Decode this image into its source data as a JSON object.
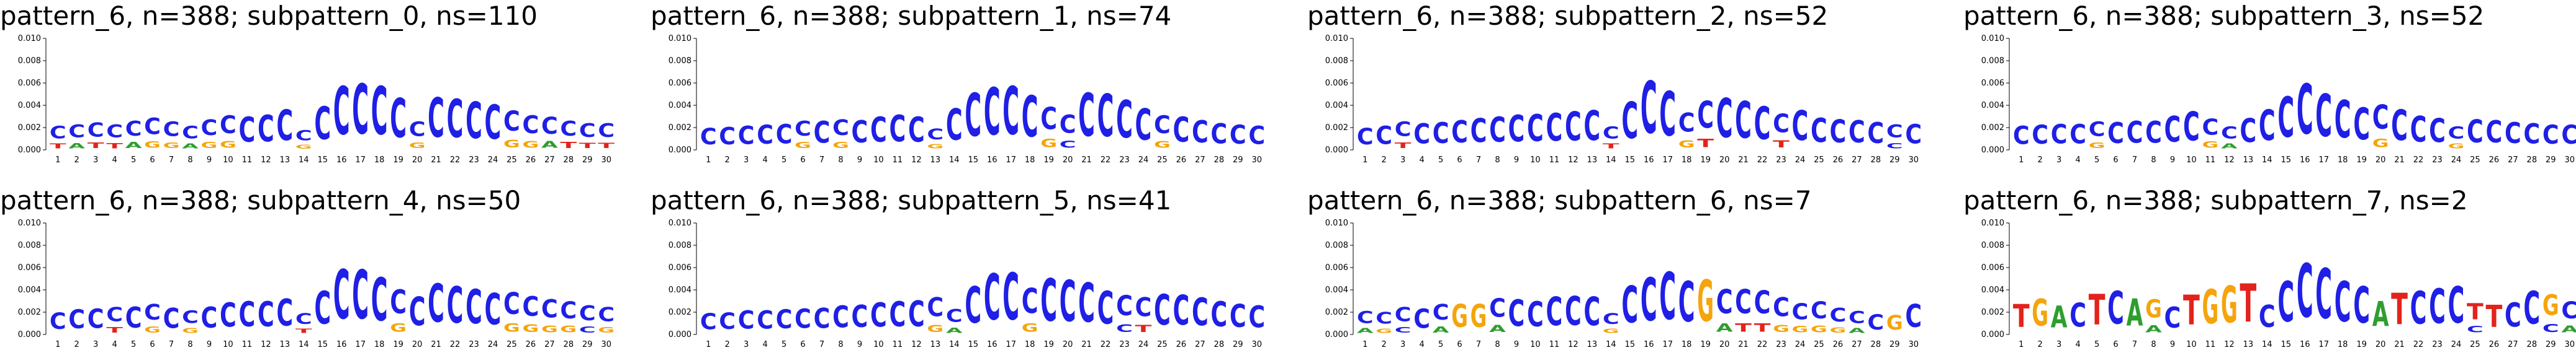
{
  "letter_colors": {
    "A": "#2e9e2e",
    "C": "#1f1fe6",
    "G": "#f5a40c",
    "T": "#e3231b"
  },
  "chart_data": [
    {
      "type": "sequence-logo",
      "title": "pattern_6, n=388; subpattern_0, ns=110",
      "ylim": [
        0,
        0.01
      ],
      "yticks": [
        "0.000",
        "0.002",
        "0.004",
        "0.006",
        "0.008",
        "0.010"
      ],
      "xticks": [
        "1",
        "2",
        "3",
        "4",
        "5",
        "6",
        "7",
        "8",
        "9",
        "10",
        "11",
        "12",
        "13",
        "14",
        "15",
        "16",
        "17",
        "18",
        "19",
        "20",
        "21",
        "22",
        "23",
        "24",
        "25",
        "26",
        "27",
        "28",
        "29",
        "30"
      ],
      "consensus": "CCCCCCCCCCCCCCCCCCCCCCCCCCCCCC",
      "heights": [
        0.0025,
        0.0026,
        0.0028,
        0.0026,
        0.003,
        0.0033,
        0.0029,
        0.0025,
        0.0031,
        0.0035,
        0.0036,
        0.0038,
        0.0044,
        0.002,
        0.0047,
        0.0069,
        0.0072,
        0.0069,
        0.0056,
        0.0029,
        0.0057,
        0.0055,
        0.0052,
        0.0049,
        0.004,
        0.0035,
        0.0034,
        0.003,
        0.0027,
        0.0027
      ],
      "secondary": [
        "T",
        "A",
        "T",
        "T",
        "A",
        "G",
        "G",
        "A",
        "G",
        "G",
        "",
        "",
        "",
        "G",
        "",
        "",
        "",
        "",
        "",
        "G",
        "",
        "",
        "",
        "",
        "G",
        "G",
        "A",
        "T",
        "T",
        "T"
      ]
    },
    {
      "type": "sequence-logo",
      "title": "pattern_6, n=388; subpattern_1, ns=74",
      "ylim": [
        0,
        0.01
      ],
      "yticks": [
        "0.000",
        "0.002",
        "0.004",
        "0.006",
        "0.008",
        "0.010"
      ],
      "xticks": [
        "1",
        "2",
        "3",
        "4",
        "5",
        "6",
        "7",
        "8",
        "9",
        "10",
        "11",
        "12",
        "13",
        "14",
        "15",
        "16",
        "17",
        "18",
        "19",
        "20",
        "21",
        "22",
        "23",
        "24",
        "25",
        "26",
        "27",
        "28",
        "29",
        "30"
      ],
      "consensus": "CCCCCCCCCCCCCCCCCCCCCCCCCCCCCC",
      "heights": [
        0.0024,
        0.0025,
        0.0026,
        0.0027,
        0.0028,
        0.003,
        0.0031,
        0.0031,
        0.0032,
        0.0036,
        0.0038,
        0.0036,
        0.0022,
        0.0045,
        0.0062,
        0.0068,
        0.0069,
        0.0059,
        0.0044,
        0.0036,
        0.0062,
        0.0061,
        0.0054,
        0.0045,
        0.0035,
        0.0036,
        0.0032,
        0.0029,
        0.0027,
        0.0026
      ],
      "secondary": [
        "",
        "",
        "",
        "",
        "",
        "G",
        "",
        "G",
        "",
        "",
        "",
        "",
        "G",
        "",
        "",
        "",
        "",
        "",
        "G",
        "C",
        "",
        "",
        "",
        "",
        "G",
        "",
        "",
        "",
        "",
        ""
      ]
    },
    {
      "type": "sequence-logo",
      "title": "pattern_6, n=388; subpattern_2, ns=52",
      "ylim": [
        0,
        0.01
      ],
      "yticks": [
        "0.000",
        "0.002",
        "0.004",
        "0.006",
        "0.008",
        "0.010"
      ],
      "xticks": [
        "1",
        "2",
        "3",
        "4",
        "5",
        "6",
        "7",
        "8",
        "9",
        "10",
        "11",
        "12",
        "13",
        "14",
        "15",
        "16",
        "17",
        "18",
        "19",
        "20",
        "21",
        "22",
        "23",
        "24",
        "25",
        "26",
        "27",
        "28",
        "29",
        "30"
      ],
      "consensus": "CCCCCCCCCCCCCCCCCCCCCCCCCCCCCC",
      "heights": [
        0.0024,
        0.0026,
        0.0029,
        0.0029,
        0.003,
        0.0032,
        0.0034,
        0.0036,
        0.0038,
        0.0039,
        0.004,
        0.0042,
        0.0043,
        0.0024,
        0.0052,
        0.0075,
        0.0064,
        0.0038,
        0.0051,
        0.0056,
        0.0053,
        0.0047,
        0.0037,
        0.0043,
        0.0035,
        0.0033,
        0.0032,
        0.003,
        0.0026,
        0.0028
      ],
      "secondary": [
        "",
        "",
        "T",
        "",
        "",
        "",
        "",
        "",
        "",
        "",
        "",
        "",
        "",
        "T",
        "",
        "",
        "",
        "G",
        "T",
        "",
        "",
        "",
        "T",
        "",
        "",
        "",
        "",
        "",
        "C",
        ""
      ]
    },
    {
      "type": "sequence-logo",
      "title": "pattern_6, n=388; subpattern_3, ns=52",
      "ylim": [
        0,
        0.01
      ],
      "yticks": [
        "0.000",
        "0.002",
        "0.004",
        "0.006",
        "0.008",
        "0.010"
      ],
      "xticks": [
        "1",
        "2",
        "3",
        "4",
        "5",
        "6",
        "7",
        "8",
        "9",
        "10",
        "11",
        "12",
        "13",
        "14",
        "15",
        "16",
        "17",
        "18",
        "19",
        "20",
        "21",
        "22",
        "23",
        "24",
        "25",
        "26",
        "27",
        "28",
        "29",
        "30"
      ],
      "consensus": "CCCCCCCCCCCCCCCCCCCCCCCCCCCCCC",
      "heights": [
        0.0026,
        0.0027,
        0.0028,
        0.0028,
        0.0029,
        0.003,
        0.0031,
        0.0031,
        0.0037,
        0.0042,
        0.0032,
        0.0024,
        0.0034,
        0.0044,
        0.0058,
        0.0072,
        0.0061,
        0.0054,
        0.0046,
        0.0047,
        0.0044,
        0.0037,
        0.0034,
        0.0024,
        0.0033,
        0.0032,
        0.003,
        0.0029,
        0.0027,
        0.0027
      ],
      "secondary": [
        "",
        "",
        "",
        "",
        "G",
        "",
        "",
        "",
        "",
        "",
        "G",
        "A",
        "",
        "",
        "",
        "",
        "",
        "",
        "",
        "G",
        "",
        "",
        "",
        "G",
        "",
        "",
        "",
        "",
        "",
        ""
      ]
    },
    {
      "type": "sequence-logo",
      "title": "pattern_6, n=388; subpattern_4, ns=50",
      "ylim": [
        0,
        0.01
      ],
      "yticks": [
        "0.000",
        "0.002",
        "0.004",
        "0.006",
        "0.008",
        "0.010"
      ],
      "xticks": [
        "1",
        "2",
        "3",
        "4",
        "5",
        "6",
        "7",
        "8",
        "9",
        "10",
        "11",
        "12",
        "13",
        "14",
        "15",
        "16",
        "17",
        "18",
        "19",
        "20",
        "21",
        "22",
        "23",
        "24",
        "25",
        "26",
        "27",
        "28",
        "29",
        "30"
      ],
      "consensus": "CCCCCCCCCCCCCCCCCCCCCCCCCCCCCC",
      "heights": [
        0.0024,
        0.0027,
        0.0028,
        0.0028,
        0.003,
        0.0031,
        0.0029,
        0.0025,
        0.003,
        0.0035,
        0.0036,
        0.0036,
        0.0039,
        0.0022,
        0.0047,
        0.0071,
        0.007,
        0.0062,
        0.0046,
        0.0041,
        0.0055,
        0.0052,
        0.0049,
        0.0045,
        0.0043,
        0.0039,
        0.0036,
        0.0034,
        0.003,
        0.0028
      ],
      "secondary": [
        "",
        "",
        "",
        "T",
        "",
        "G",
        "",
        "G",
        "",
        "",
        "",
        "",
        "",
        "T",
        "",
        "",
        "",
        "",
        "G",
        "",
        "",
        "",
        "",
        "",
        "G",
        "G",
        "G",
        "G",
        "C",
        "G"
      ]
    },
    {
      "type": "sequence-logo",
      "title": "pattern_6, n=388; subpattern_5, ns=41",
      "ylim": [
        0,
        0.01
      ],
      "yticks": [
        "0.000",
        "0.002",
        "0.004",
        "0.006",
        "0.008",
        "0.010"
      ],
      "xticks": [
        "1",
        "2",
        "3",
        "4",
        "5",
        "6",
        "7",
        "8",
        "9",
        "10",
        "11",
        "12",
        "13",
        "14",
        "15",
        "16",
        "17",
        "18",
        "19",
        "20",
        "21",
        "22",
        "23",
        "24",
        "25",
        "26",
        "27",
        "28",
        "29",
        "30"
      ],
      "consensus": "CCCCCCCCCCCCCCCCCCCCCCCCCCCCCC",
      "heights": [
        0.0023,
        0.0024,
        0.0026,
        0.0026,
        0.0027,
        0.0028,
        0.0029,
        0.0031,
        0.0032,
        0.0035,
        0.0036,
        0.0037,
        0.0038,
        0.0026,
        0.0052,
        0.0066,
        0.0067,
        0.0048,
        0.0061,
        0.0059,
        0.0056,
        0.0047,
        0.004,
        0.0038,
        0.0044,
        0.0043,
        0.004,
        0.0036,
        0.0033,
        0.0031
      ],
      "secondary": [
        "",
        "",
        "",
        "",
        "",
        "",
        "",
        "",
        "",
        "",
        "",
        "",
        "G",
        "A",
        "",
        "",
        "",
        "G",
        "",
        "",
        "",
        "",
        "C",
        "T",
        "",
        "",
        "",
        "",
        "",
        ""
      ]
    },
    {
      "type": "sequence-logo",
      "title": "pattern_6, n=388; subpattern_6, ns=7",
      "ylim": [
        0,
        0.01
      ],
      "yticks": [
        "0.000",
        "0.002",
        "0.004",
        "0.006",
        "0.008",
        "0.010"
      ],
      "xticks": [
        "1",
        "2",
        "3",
        "4",
        "5",
        "6",
        "7",
        "8",
        "9",
        "10",
        "11",
        "12",
        "13",
        "14",
        "15",
        "16",
        "17",
        "18",
        "19",
        "20",
        "21",
        "22",
        "23",
        "24",
        "25",
        "26",
        "27",
        "28",
        "29",
        "30"
      ],
      "consensus": "CCCCCGGCCCCCCCCCCCGCCCCCCCCCGC",
      "heights": [
        0.0024,
        0.0023,
        0.0028,
        0.0028,
        0.0031,
        0.0033,
        0.0033,
        0.0037,
        0.0038,
        0.0036,
        0.0041,
        0.0042,
        0.0041,
        0.0022,
        0.0053,
        0.0062,
        0.0068,
        0.0058,
        0.006,
        0.0047,
        0.0047,
        0.0045,
        0.0038,
        0.0032,
        0.0034,
        0.0027,
        0.0024,
        0.0022,
        0.0021,
        0.0033
      ],
      "secondary": [
        "A",
        "G",
        "C",
        "",
        "A",
        "",
        "",
        "A",
        "",
        "",
        "",
        "",
        "",
        "G",
        "",
        "",
        "",
        "",
        "",
        "A",
        "T",
        "T",
        "G",
        "G",
        "G",
        "G",
        "A",
        "",
        "",
        ""
      ]
    },
    {
      "type": "sequence-logo",
      "title": "pattern_6, n=388; subpattern_7, ns=2",
      "ylim": [
        0,
        0.01
      ],
      "yticks": [
        "0.000",
        "0.002",
        "0.004",
        "0.006",
        "0.008",
        "0.010"
      ],
      "xticks": [
        "1",
        "2",
        "3",
        "4",
        "5",
        "6",
        "7",
        "8",
        "9",
        "10",
        "11",
        "12",
        "13",
        "14",
        "15",
        "16",
        "17",
        "18",
        "19",
        "20",
        "21",
        "22",
        "23",
        "24",
        "25",
        "26",
        "27",
        "28",
        "29",
        "30"
      ],
      "consensus": "TGACTCAGCTGGTCCCCCCATCCCTTCCGC",
      "heights": [
        0.0033,
        0.0039,
        0.0031,
        0.0034,
        0.0044,
        0.0047,
        0.0039,
        0.0036,
        0.003,
        0.0043,
        0.0049,
        0.0053,
        0.0055,
        0.0032,
        0.0058,
        0.0077,
        0.0072,
        0.0058,
        0.0052,
        0.0036,
        0.0045,
        0.0047,
        0.005,
        0.0052,
        0.0032,
        0.0032,
        0.0035,
        0.0047,
        0.0041,
        0.0034
      ],
      "secondary": [
        "",
        "",
        "",
        "",
        "",
        "",
        "",
        "A",
        "",
        "",
        "",
        "",
        "",
        "",
        "",
        "",
        "",
        "",
        "",
        "",
        "",
        "",
        "",
        "",
        "C",
        "",
        "",
        "",
        "C",
        "A"
      ]
    }
  ]
}
